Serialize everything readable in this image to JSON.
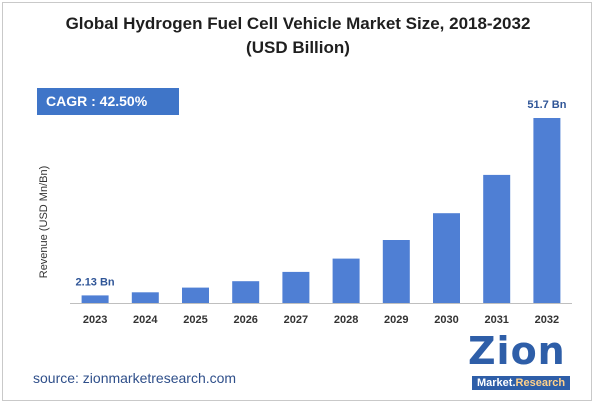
{
  "title_line1": "Global Hydrogen Fuel Cell Vehicle Market Size, 2018-2032",
  "title_line2": "(USD Billion)",
  "cagr_label": "CAGR : 42.50%",
  "source": "source: zionmarketresearch.com",
  "logo": {
    "main": "Zion",
    "sub_market": "Market.",
    "sub_research": "Research"
  },
  "colors": {
    "bar": "#4f7fd4",
    "cagr_bg": "#3f75c8",
    "label": "#2f5597",
    "axis": "#bfbfbf"
  },
  "chart_data": {
    "type": "bar",
    "title": "Global Hydrogen Fuel Cell Vehicle Market Size, 2018-2032 (USD Billion)",
    "xlabel": "",
    "ylabel": "Revenue (USD Mn/Bn)",
    "categories": [
      "2023",
      "2024",
      "2025",
      "2026",
      "2027",
      "2028",
      "2029",
      "2030",
      "2031",
      "2032"
    ],
    "values": [
      2.13,
      3.0,
      4.3,
      6.1,
      8.7,
      12.4,
      17.6,
      25.1,
      35.8,
      51.7
    ],
    "data_labels": {
      "0": "2.13 Bn",
      "9": "51.7 Bn"
    },
    "ylim": [
      0,
      55
    ],
    "grid": false,
    "legend": "none"
  }
}
